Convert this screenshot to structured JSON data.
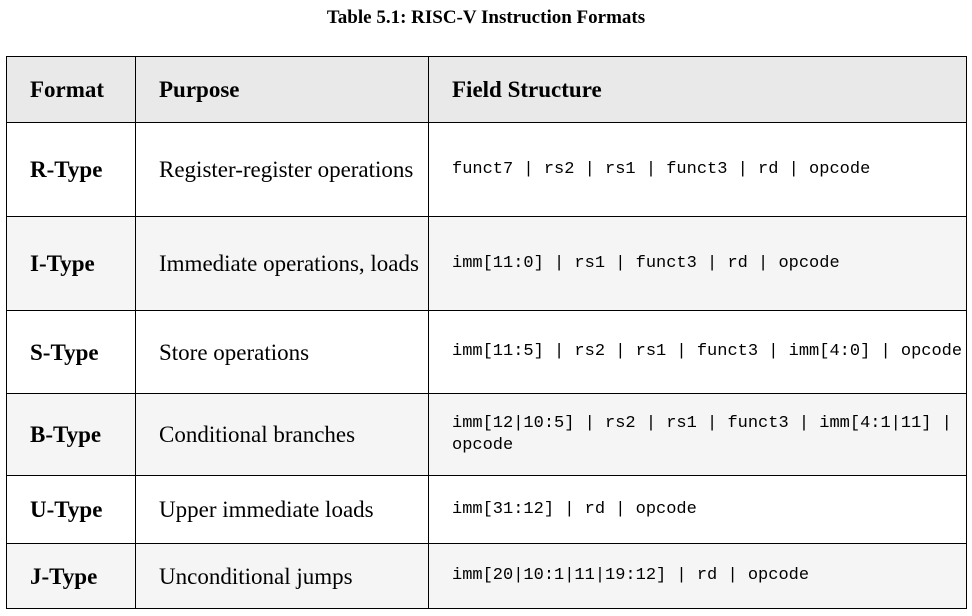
{
  "caption": "Table 5.1: RISC-V Instruction Formats",
  "table": {
    "headers": {
      "format": "Format",
      "purpose": "Purpose",
      "fields": "Field Structure"
    },
    "rows": [
      {
        "format": "R-Type",
        "purpose": "Register-register operations",
        "fields": "funct7 | rs2 | rs1 | funct3 | rd | opcode"
      },
      {
        "format": "I-Type",
        "purpose": "Immediate operations, loads",
        "fields": "imm[11:0] | rs1 | funct3 | rd | opcode"
      },
      {
        "format": "S-Type",
        "purpose": "Store operations",
        "fields": "imm[11:5] | rs2 | rs1 | funct3 | imm[4:0] | opcode"
      },
      {
        "format": "B-Type",
        "purpose": "Conditional branches",
        "fields": "imm[12|10:5] | rs2 | rs1 | funct3 | imm[4:1|11] | opcode"
      },
      {
        "format": "U-Type",
        "purpose": "Upper immediate loads",
        "fields": "imm[31:12] | rd | opcode"
      },
      {
        "format": "J-Type",
        "purpose": "Unconditional jumps",
        "fields": "imm[20|10:1|11|19:12] | rd | opcode"
      }
    ]
  }
}
